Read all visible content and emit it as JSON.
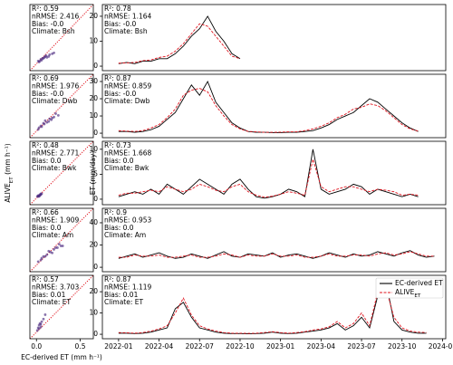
{
  "chart_data": [
    {
      "type": "scatter",
      "color": "#4b2a7f",
      "xlim": [
        -0.075,
        0.65
      ],
      "ylim": [
        -0.075,
        0.65
      ],
      "annotations": [
        "R²: 0.59",
        "nRMSE: 2.416",
        "Bias: -0.0",
        "Climate: Bsh"
      ],
      "x": [
        0.02,
        0.05,
        0.08,
        0.1,
        0.12,
        0.15,
        0.03,
        0.07,
        0.18,
        0.2,
        0.11,
        0.06,
        0.14,
        0.09,
        0.04
      ],
      "values": [
        0.03,
        0.05,
        0.06,
        0.08,
        0.07,
        0.1,
        0.02,
        0.06,
        0.11,
        0.12,
        0.09,
        0.04,
        0.08,
        0.07,
        0.03
      ]
    },
    {
      "type": "line",
      "xlim": [
        2021.9,
        2024.02
      ],
      "ylim": [
        -1.8,
        24.7
      ],
      "yticks": [
        0,
        10,
        20
      ],
      "annotations": [
        "R²: 0.78",
        "nRMSE: 1.164",
        "Bias: -0.0",
        "Climate: Bsh"
      ],
      "x": [
        2022,
        2022.05,
        2022.1,
        2022.15,
        2022.2,
        2022.25,
        2022.3,
        2022.35,
        2022.4,
        2022.45,
        2022.5,
        2022.55,
        2022.6,
        2022.65,
        2022.7,
        2022.75
      ],
      "series": [
        {
          "color": "#000000",
          "values": [
            1,
            1.5,
            1,
            2,
            2,
            3,
            3,
            5,
            8,
            12,
            15,
            20,
            14,
            10,
            5,
            3
          ]
        },
        {
          "color": "#e0141e",
          "dashed": true,
          "values": [
            1.2,
            1.3,
            1.5,
            2.2,
            2.5,
            3.5,
            4,
            6,
            9,
            13,
            17,
            16,
            12,
            8,
            4,
            3
          ]
        }
      ]
    },
    {
      "type": "scatter",
      "color": "#4b2a7f",
      "xlim": [
        -0.075,
        0.65
      ],
      "ylim": [
        -0.075,
        0.65
      ],
      "annotations": [
        "R²: 0.69",
        "nRMSE: 1.976",
        "Bias: -0.0",
        "Climate: Dwb"
      ],
      "x": [
        0.02,
        0.05,
        0.08,
        0.12,
        0.15,
        0.18,
        0.22,
        0.25,
        0.1,
        0.06,
        0.14,
        0.2,
        0.03,
        0.17,
        0.09
      ],
      "values": [
        0.02,
        0.06,
        0.09,
        0.1,
        0.14,
        0.15,
        0.2,
        0.18,
        0.12,
        0.05,
        0.11,
        0.16,
        0.04,
        0.13,
        0.08
      ]
    },
    {
      "type": "line",
      "xlim": [
        2021.9,
        2024.02
      ],
      "ylim": [
        -2.6,
        34.2
      ],
      "yticks": [
        0,
        10,
        20,
        30
      ],
      "annotations": [
        "R²: 0.87",
        "nRMSE: 0.859",
        "Bias: -0.0",
        "Climate: Dwb"
      ],
      "x": [
        2022,
        2022.05,
        2022.1,
        2022.15,
        2022.2,
        2022.25,
        2022.3,
        2022.35,
        2022.4,
        2022.45,
        2022.5,
        2022.55,
        2022.6,
        2022.65,
        2022.7,
        2022.75,
        2022.8,
        2022.85,
        2022.9,
        2022.95,
        2023,
        2023.05,
        2023.1,
        2023.15,
        2023.2,
        2023.25,
        2023.3,
        2023.35,
        2023.4,
        2023.45,
        2023.5,
        2023.55,
        2023.6,
        2023.65,
        2023.7,
        2023.75,
        2023.8,
        2023.85,
        2023.9,
        2023.95
      ],
      "series": [
        {
          "color": "#000000",
          "values": [
            1,
            1,
            0.5,
            1,
            2,
            4,
            8,
            12,
            20,
            28,
            22,
            30,
            18,
            12,
            6,
            3,
            1,
            0.5,
            0.5,
            0.3,
            0.3,
            0.5,
            0.5,
            1,
            1.5,
            3,
            5,
            8,
            10,
            12,
            16,
            20,
            18,
            14,
            10,
            6,
            3,
            1,
            null,
            null
          ]
        },
        {
          "color": "#e0141e",
          "dashed": true,
          "values": [
            1.5,
            1.2,
            1,
            1.5,
            3,
            5,
            9,
            14,
            22,
            25,
            26,
            24,
            16,
            10,
            5,
            2.5,
            1,
            0.8,
            0.5,
            0.5,
            0.6,
            0.8,
            0.8,
            1.5,
            2.5,
            4,
            6,
            9,
            11,
            14,
            15,
            17,
            16,
            13,
            9,
            5,
            2.5,
            1.2,
            null,
            null
          ]
        }
      ]
    },
    {
      "type": "scatter",
      "color": "#4b2a7f",
      "xlim": [
        -0.075,
        0.65
      ],
      "ylim": [
        -0.075,
        0.65
      ],
      "ylabel": "ALIVE_ET (mm h⁻¹)",
      "annotations": [
        "R²: 0.48",
        "nRMSE: 2.771",
        "Bias: 0.0",
        "Climate: Bwk"
      ],
      "x": [
        0.01,
        0.02,
        0.03,
        0.04,
        0.05,
        0.06,
        0.02,
        0.03,
        0.05,
        0.04
      ],
      "values": [
        0.02,
        0.02,
        0.03,
        0.04,
        0.04,
        0.05,
        0.03,
        0.02,
        0.05,
        0.03
      ]
    },
    {
      "type": "line",
      "xlim": [
        2021.9,
        2024.02
      ],
      "ylim": [
        -1.1,
        11.6
      ],
      "yticks": [
        0,
        5,
        10
      ],
      "ylabel": "ET (mm/day)",
      "annotations": [
        "R²: 0.73",
        "nRMSE: 1.668",
        "Bias: 0.0",
        "Climate: Bwk"
      ],
      "x": [
        2022,
        2022.05,
        2022.1,
        2022.15,
        2022.2,
        2022.25,
        2022.3,
        2022.35,
        2022.4,
        2022.45,
        2022.5,
        2022.55,
        2022.6,
        2022.65,
        2022.7,
        2022.75,
        2022.8,
        2022.85,
        2022.9,
        2022.95,
        2023,
        2023.05,
        2023.1,
        2023.15,
        2023.2,
        2023.25,
        2023.3,
        2023.35,
        2023.4,
        2023.45,
        2023.5,
        2023.55,
        2023.6,
        2023.65,
        2023.7,
        2023.75,
        2023.8,
        2023.85,
        2023.9,
        2023.95
      ],
      "series": [
        {
          "color": "#000000",
          "values": [
            0.5,
            1,
            1.5,
            1,
            2,
            1,
            3,
            2,
            1,
            2.5,
            4,
            3,
            2,
            1,
            3,
            4,
            2,
            0.5,
            0.2,
            0.5,
            1,
            2,
            1.5,
            0.5,
            10,
            2,
            1,
            1.5,
            2,
            3,
            2.5,
            1,
            2,
            1.5,
            1,
            0.5,
            1,
            0.5,
            null,
            null
          ]
        },
        {
          "color": "#e0141e",
          "dashed": true,
          "values": [
            0.8,
            1.2,
            1.2,
            1.5,
            1.8,
            1.5,
            2.5,
            2,
            1.5,
            2,
            3,
            2.5,
            1.8,
            1.5,
            2.5,
            3,
            1.5,
            0.8,
            0.4,
            0.6,
            1,
            1.5,
            1.2,
            0.8,
            8,
            2.5,
            1.5,
            2,
            2.5,
            2.5,
            2,
            1.5,
            2,
            1.8,
            1.5,
            0.8,
            1,
            0.8,
            null,
            null
          ]
        }
      ]
    },
    {
      "type": "scatter",
      "color": "#4b2a7f",
      "xlim": [
        -0.075,
        0.65
      ],
      "ylim": [
        -0.075,
        0.65
      ],
      "annotations": [
        "R²: 0.66",
        "nRMSE: 1.909",
        "Bias: 0.0",
        "Climate: Am"
      ],
      "x": [
        0.02,
        0.05,
        0.08,
        0.12,
        0.16,
        0.2,
        0.24,
        0.28,
        0.1,
        0.14,
        0.18,
        0.22,
        0.06,
        0.26,
        0.3
      ],
      "values": [
        0.04,
        0.06,
        0.1,
        0.12,
        0.15,
        0.18,
        0.2,
        0.22,
        0.1,
        0.16,
        0.14,
        0.2,
        0.08,
        0.24,
        0.22
      ]
    },
    {
      "type": "line",
      "xlim": [
        2021.9,
        2024.02
      ],
      "ylim": [
        -4,
        53
      ],
      "yticks": [
        0,
        20,
        40
      ],
      "annotations": [
        "R²: 0.9",
        "nRMSE: 0.953",
        "Bias: 0.0",
        "Climate: Am"
      ],
      "x": [
        2022,
        2022.05,
        2022.1,
        2022.15,
        2022.2,
        2022.25,
        2022.3,
        2022.35,
        2022.4,
        2022.45,
        2022.5,
        2022.55,
        2022.6,
        2022.65,
        2022.7,
        2022.75,
        2022.8,
        2022.85,
        2022.9,
        2022.95,
        2023,
        2023.05,
        2023.1,
        2023.15,
        2023.2,
        2023.25,
        2023.3,
        2023.35,
        2023.4,
        2023.45,
        2023.5,
        2023.55,
        2023.6,
        2023.65,
        2023.7,
        2023.75,
        2023.8,
        2023.85,
        2023.9,
        2023.95
      ],
      "series": [
        {
          "color": "#000000",
          "values": [
            8,
            10,
            12,
            9,
            11,
            13,
            10,
            8,
            9,
            12,
            10,
            8,
            11,
            14,
            10,
            9,
            12,
            11,
            10,
            13,
            9,
            11,
            12,
            10,
            8,
            10,
            13,
            11,
            9,
            12,
            10,
            11,
            14,
            12,
            10,
            13,
            15,
            11,
            9,
            10
          ]
        },
        {
          "color": "#e0141e",
          "dashed": true,
          "values": [
            9,
            9,
            11,
            10,
            10,
            11,
            9,
            9,
            10,
            11,
            9,
            9,
            10,
            12,
            11,
            9,
            11,
            10,
            10,
            12,
            10,
            10,
            11,
            9,
            9,
            10,
            12,
            10,
            10,
            11,
            11,
            10,
            12,
            13,
            11,
            12,
            14,
            12,
            10,
            10
          ]
        }
      ]
    },
    {
      "type": "scatter",
      "color": "#4b2a7f",
      "xlim": [
        -0.075,
        0.65
      ],
      "ylim": [
        -0.075,
        0.65
      ],
      "xticks": [
        {
          "value": 0,
          "label": "0.0"
        },
        {
          "value": 0.5,
          "label": "0.5"
        }
      ],
      "xlabel": "EC-derived ET (mm h⁻¹)",
      "annotations": [
        "R²: 0.57",
        "nRMSE: 3.703",
        "Bias: 0.01",
        "Climate: ET"
      ],
      "x": [
        0.01,
        0.02,
        0.03,
        0.04,
        0.05,
        0.06,
        0.08,
        0.1,
        0.03,
        0.05
      ],
      "values": [
        0.02,
        0.05,
        0.08,
        0.1,
        0.06,
        0.12,
        0.15,
        0.2,
        0.04,
        0.09
      ]
    },
    {
      "type": "line",
      "xlim": [
        2021.9,
        2024.02
      ],
      "ylim": [
        -2.1,
        27.7
      ],
      "yticks": [
        0,
        10,
        20
      ],
      "xticks": [
        {
          "value": 2022,
          "label": "2022-01"
        },
        {
          "value": 2022.25,
          "label": "2022-04"
        },
        {
          "value": 2022.5,
          "label": "2022-07"
        },
        {
          "value": 2022.75,
          "label": "2022-10"
        },
        {
          "value": 2023,
          "label": "2023-01"
        },
        {
          "value": 2023.25,
          "label": "2023-04"
        },
        {
          "value": 2023.5,
          "label": "2023-07"
        },
        {
          "value": 2023.75,
          "label": "2023-10"
        },
        {
          "value": 2024,
          "label": "2024-01"
        }
      ],
      "legend": "upper right",
      "annotations": [
        "R²: 0.87",
        "nRMSE: 1.119",
        "Bias: 0.01",
        "Climate: ET"
      ],
      "x": [
        2022,
        2022.05,
        2022.1,
        2022.15,
        2022.2,
        2022.25,
        2022.3,
        2022.35,
        2022.4,
        2022.45,
        2022.5,
        2022.55,
        2022.6,
        2022.65,
        2022.7,
        2022.75,
        2022.8,
        2022.85,
        2022.9,
        2022.95,
        2023,
        2023.05,
        2023.1,
        2023.15,
        2023.2,
        2023.25,
        2023.3,
        2023.35,
        2023.4,
        2023.45,
        2023.5,
        2023.55,
        2023.6,
        2023.65,
        2023.7,
        2023.75,
        2023.8,
        2023.85,
        2023.9,
        2023.95
      ],
      "series": [
        {
          "name": "EC-derived ET",
          "color": "#000000",
          "values": [
            0.5,
            0.5,
            0.3,
            0.5,
            1,
            2,
            3,
            12,
            15,
            8,
            3,
            2,
            1,
            0.5,
            0.3,
            0.3,
            0.2,
            0.3,
            0.5,
            1,
            0.5,
            0.3,
            0.5,
            1,
            1.5,
            2,
            3,
            5,
            2,
            4,
            8,
            3,
            18,
            25,
            6,
            2,
            1,
            0.5,
            0.5,
            null
          ]
        },
        {
          "name": "ALIVE_ET",
          "color": "#e0141e",
          "dashed": true,
          "values": [
            0.8,
            0.7,
            0.5,
            0.8,
            1.5,
            2.5,
            4,
            10,
            17,
            9,
            4,
            2.5,
            1.5,
            0.8,
            0.5,
            0.5,
            0.4,
            0.5,
            0.8,
            1.2,
            0.8,
            0.5,
            0.8,
            1.2,
            2,
            2.5,
            3.5,
            6,
            3,
            5,
            10,
            4,
            20,
            22,
            8,
            3,
            1.5,
            1,
            0.8,
            null
          ]
        }
      ]
    }
  ]
}
